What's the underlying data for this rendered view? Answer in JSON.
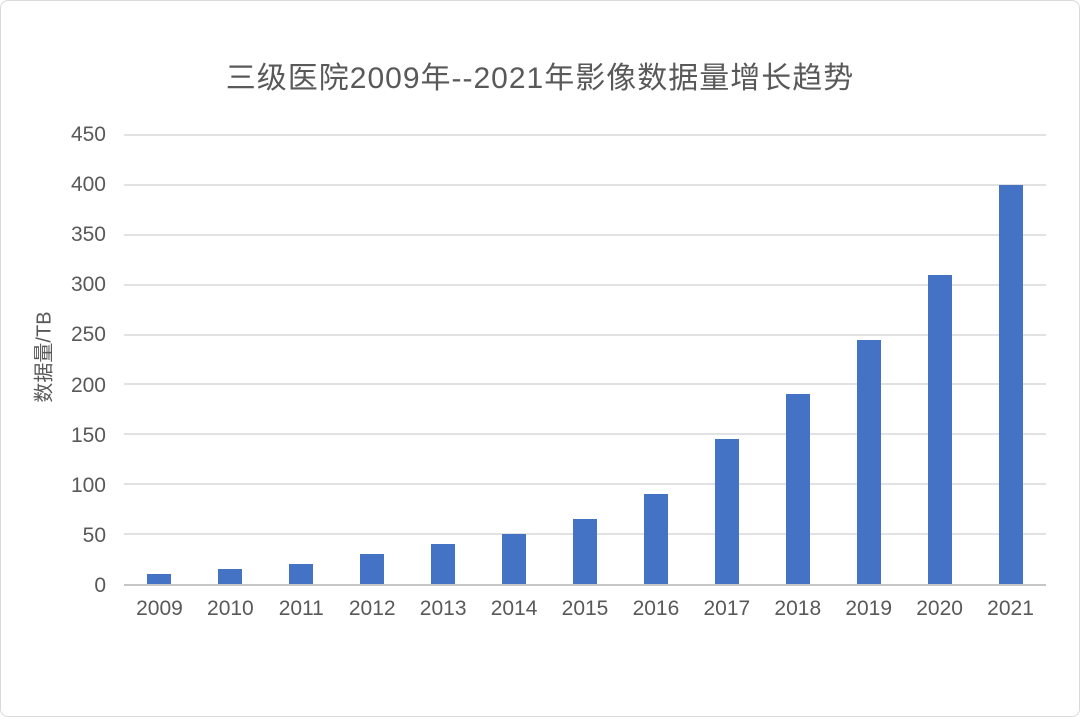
{
  "window": {
    "background": "#ffffff",
    "border_color": "#d9d9d9"
  },
  "chart_data": {
    "type": "bar",
    "title": "三级医院2009年--2021年影像数据量增长趋势",
    "xlabel": "",
    "ylabel": "数据量/TB",
    "categories": [
      "2009",
      "2010",
      "2011",
      "2012",
      "2013",
      "2014",
      "2015",
      "2016",
      "2017",
      "2018",
      "2019",
      "2020",
      "2021"
    ],
    "values": [
      10,
      15,
      20,
      30,
      40,
      50,
      65,
      90,
      145,
      190,
      245,
      310,
      400
    ],
    "unit": "TB",
    "ylim": [
      0,
      450
    ],
    "ytick_interval": 50,
    "yticks": [
      0,
      50,
      100,
      150,
      200,
      250,
      300,
      350,
      400,
      450
    ],
    "grid": "horizontal",
    "legend": "none",
    "bar_color": "#4472c4",
    "gridline_color": "#e2e2e2",
    "axis_line_color": "#c6c6c6",
    "text_color": "#595959"
  }
}
